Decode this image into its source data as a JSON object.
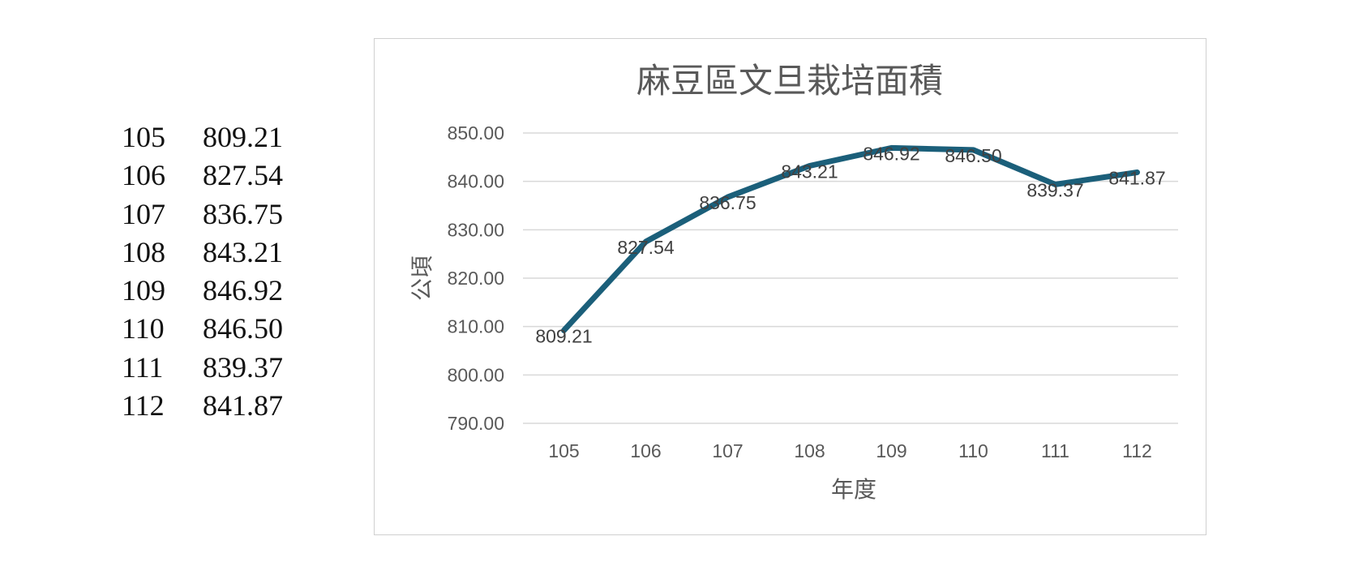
{
  "table": [
    {
      "year": "105",
      "value": "809.21"
    },
    {
      "year": "106",
      "value": "827.54"
    },
    {
      "year": "107",
      "value": "836.75"
    },
    {
      "year": "108",
      "value": "843.21"
    },
    {
      "year": "109",
      "value": "846.92"
    },
    {
      "year": "110",
      "value": "846.50"
    },
    {
      "year": "111",
      "value": "839.37"
    },
    {
      "year": "112",
      "value": "841.87"
    }
  ],
  "chart_data": {
    "type": "line",
    "title": "麻豆區文旦栽培面積",
    "xlabel": "年度",
    "ylabel": "公頃",
    "categories": [
      "105",
      "106",
      "107",
      "108",
      "109",
      "110",
      "111",
      "112"
    ],
    "series": [
      {
        "values": [
          809.21,
          827.54,
          836.75,
          843.21,
          846.92,
          846.5,
          839.37,
          841.87
        ],
        "color": "#1b5f7a"
      }
    ],
    "data_labels": [
      "809.21",
      "827.54",
      "836.75",
      "843.21",
      "846.92",
      "846.50",
      "839.37",
      "841.87"
    ],
    "ylim": [
      790,
      850
    ],
    "y_ticks": [
      790,
      800,
      810,
      820,
      830,
      840,
      850
    ],
    "y_tick_labels": [
      "790.00",
      "800.00",
      "810.00",
      "820.00",
      "830.00",
      "840.00",
      "850.00"
    ],
    "grid": true,
    "legend": "none"
  }
}
